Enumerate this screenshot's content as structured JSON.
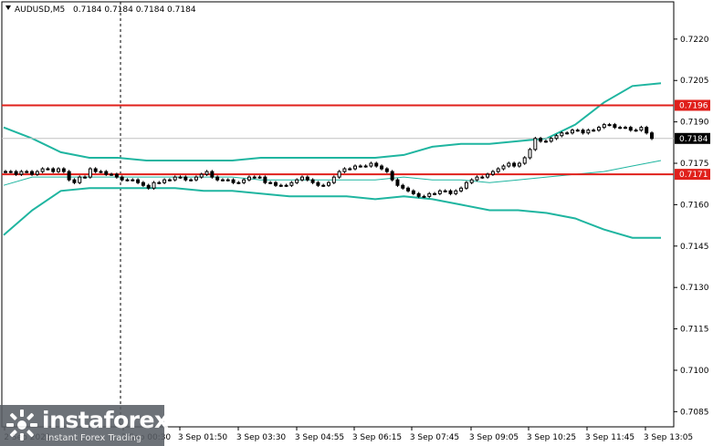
{
  "header": {
    "symbol_label": "AUDUSD,M5",
    "ohlc_text": "0.7184 0.7184 0.7184 0.7184"
  },
  "chart_data": {
    "type": "candlestick",
    "symbol": "AUDUSD",
    "timeframe": "M5",
    "ylim": [
      0.70795,
      0.72335
    ],
    "y_ticks": [
      "0.7220",
      "0.7205",
      "0.7190",
      "0.7175",
      "0.7160",
      "0.7145",
      "0.7130",
      "0.7115",
      "0.7100",
      "0.7085"
    ],
    "y_tick_values": [
      0.722,
      0.7205,
      0.719,
      0.7175,
      0.716,
      0.7145,
      0.713,
      0.7115,
      0.71,
      0.7085
    ],
    "x_tick_labels": [
      "2 Sep 2021",
      "3 Sep 00:30",
      "3 Sep 01:50",
      "3 Sep 03:30",
      "3 Sep 04:55",
      "3 Sep 06:15",
      "3 Sep 07:45",
      "3 Sep 09:05",
      "3 Sep 10:25",
      "3 Sep 11:45",
      "3 Sep 13:05"
    ],
    "levels": [
      {
        "label": "0.7196",
        "value": 0.7196,
        "color": "#e0201b"
      },
      {
        "label": "0.7171",
        "value": 0.7171,
        "color": "#e0201b"
      }
    ],
    "current_price": {
      "label": "0.7184",
      "value": 0.7184
    },
    "bollinger": {
      "upper": [
        0.7188,
        0.7184,
        0.7179,
        0.7177,
        0.7177,
        0.7176,
        0.7176,
        0.7176,
        0.7176,
        0.7177,
        0.7177,
        0.7177,
        0.7177,
        0.7177,
        0.7178,
        0.7181,
        0.7182,
        0.7182,
        0.7183,
        0.7184,
        0.7189,
        0.7197,
        0.7203,
        0.7204
      ],
      "middle": [
        0.7167,
        0.717,
        0.717,
        0.717,
        0.717,
        0.717,
        0.717,
        0.717,
        0.717,
        0.7169,
        0.7169,
        0.7169,
        0.7169,
        0.7169,
        0.717,
        0.7169,
        0.7169,
        0.7168,
        0.7169,
        0.717,
        0.7171,
        0.7172,
        0.7174,
        0.7176
      ],
      "lower": [
        0.7149,
        0.7158,
        0.7165,
        0.7166,
        0.7166,
        0.7166,
        0.7166,
        0.7165,
        0.7165,
        0.7164,
        0.7163,
        0.7163,
        0.7163,
        0.7162,
        0.7163,
        0.7162,
        0.716,
        0.7158,
        0.7158,
        0.7157,
        0.7155,
        0.7151,
        0.7148,
        0.7148
      ]
    },
    "candles": [
      0.7172,
      0.7172,
      0.7171,
      0.7172,
      0.7172,
      0.7171,
      0.7172,
      0.7173,
      0.7173,
      0.7172,
      0.7173,
      0.7172,
      0.7169,
      0.7168,
      0.717,
      0.717,
      0.7173,
      0.7172,
      0.7172,
      0.7171,
      0.7171,
      0.717,
      0.7169,
      0.7169,
      0.7169,
      0.7168,
      0.7167,
      0.7166,
      0.7168,
      0.7168,
      0.7169,
      0.7169,
      0.717,
      0.717,
      0.7169,
      0.7169,
      0.717,
      0.7171,
      0.7172,
      0.717,
      0.7169,
      0.7169,
      0.7169,
      0.7168,
      0.7168,
      0.7169,
      0.717,
      0.717,
      0.717,
      0.7168,
      0.7168,
      0.7167,
      0.7167,
      0.7167,
      0.7168,
      0.7169,
      0.717,
      0.7169,
      0.7168,
      0.7167,
      0.7167,
      0.7168,
      0.717,
      0.7172,
      0.7173,
      0.7173,
      0.7174,
      0.7174,
      0.7174,
      0.7175,
      0.7174,
      0.7173,
      0.7172,
      0.7169,
      0.7167,
      0.7166,
      0.7165,
      0.7164,
      0.7163,
      0.7163,
      0.7164,
      0.7164,
      0.7165,
      0.7165,
      0.7164,
      0.7165,
      0.7166,
      0.7168,
      0.7169,
      0.717,
      0.717,
      0.7171,
      0.7172,
      0.7173,
      0.7174,
      0.7175,
      0.7174,
      0.7175,
      0.7177,
      0.718,
      0.7184,
      0.7183,
      0.7183,
      0.7184,
      0.7185,
      0.7186,
      0.7186,
      0.7187,
      0.7187,
      0.7186,
      0.7187,
      0.7187,
      0.7188,
      0.7189,
      0.7189,
      0.7188,
      0.7188,
      0.7188,
      0.7187,
      0.7187,
      0.7188,
      0.7186,
      0.7184
    ],
    "grid": false,
    "crosshair_vertical": true
  },
  "watermark": {
    "brand": "instaforex",
    "tagline": "Instant Forex Trading",
    "logo_icon": "instaforex-logo-icon"
  }
}
